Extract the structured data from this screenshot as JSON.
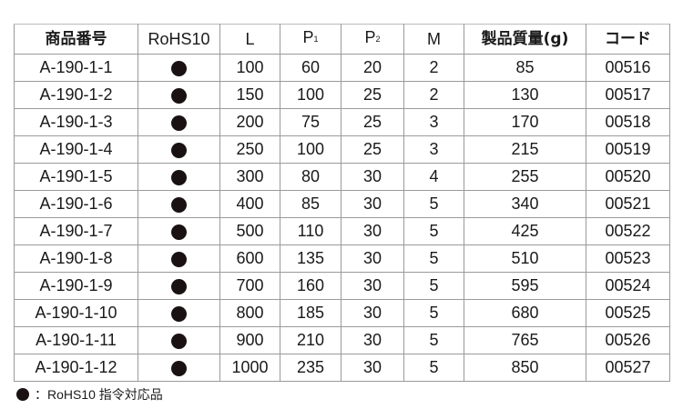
{
  "headers": {
    "code": "商品番号",
    "rohs": "RoHS10",
    "l": "L",
    "p1": "P",
    "p1_sub": "1",
    "p2": "P",
    "p2_sub": "2",
    "m": "M",
    "mass": "製品質量(g)",
    "cd": "コード"
  },
  "rows": [
    {
      "id": "A-190-1-1",
      "rohs": true,
      "l": "100",
      "p1": "60",
      "p2": "20",
      "m": "2",
      "mass": "85",
      "cd": "00516"
    },
    {
      "id": "A-190-1-2",
      "rohs": true,
      "l": "150",
      "p1": "100",
      "p2": "25",
      "m": "2",
      "mass": "130",
      "cd": "00517"
    },
    {
      "id": "A-190-1-3",
      "rohs": true,
      "l": "200",
      "p1": "75",
      "p2": "25",
      "m": "3",
      "mass": "170",
      "cd": "00518"
    },
    {
      "id": "A-190-1-4",
      "rohs": true,
      "l": "250",
      "p1": "100",
      "p2": "25",
      "m": "3",
      "mass": "215",
      "cd": "00519"
    },
    {
      "id": "A-190-1-5",
      "rohs": true,
      "l": "300",
      "p1": "80",
      "p2": "30",
      "m": "4",
      "mass": "255",
      "cd": "00520"
    },
    {
      "id": "A-190-1-6",
      "rohs": true,
      "l": "400",
      "p1": "85",
      "p2": "30",
      "m": "5",
      "mass": "340",
      "cd": "00521"
    },
    {
      "id": "A-190-1-7",
      "rohs": true,
      "l": "500",
      "p1": "110",
      "p2": "30",
      "m": "5",
      "mass": "425",
      "cd": "00522"
    },
    {
      "id": "A-190-1-8",
      "rohs": true,
      "l": "600",
      "p1": "135",
      "p2": "30",
      "m": "5",
      "mass": "510",
      "cd": "00523"
    },
    {
      "id": "A-190-1-9",
      "rohs": true,
      "l": "700",
      "p1": "160",
      "p2": "30",
      "m": "5",
      "mass": "595",
      "cd": "00524"
    },
    {
      "id": "A-190-1-10",
      "rohs": true,
      "l": "800",
      "p1": "185",
      "p2": "30",
      "m": "5",
      "mass": "680",
      "cd": "00525"
    },
    {
      "id": "A-190-1-11",
      "rohs": true,
      "l": "900",
      "p1": "210",
      "p2": "30",
      "m": "5",
      "mass": "765",
      "cd": "00526"
    },
    {
      "id": "A-190-1-12",
      "rohs": true,
      "l": "1000",
      "p1": "235",
      "p2": "30",
      "m": "5",
      "mass": "850",
      "cd": "00527"
    }
  ],
  "note": "：RoHS10 指令対応品",
  "colors": {
    "dot": "#1a1212",
    "border": "#9a9a9a"
  }
}
